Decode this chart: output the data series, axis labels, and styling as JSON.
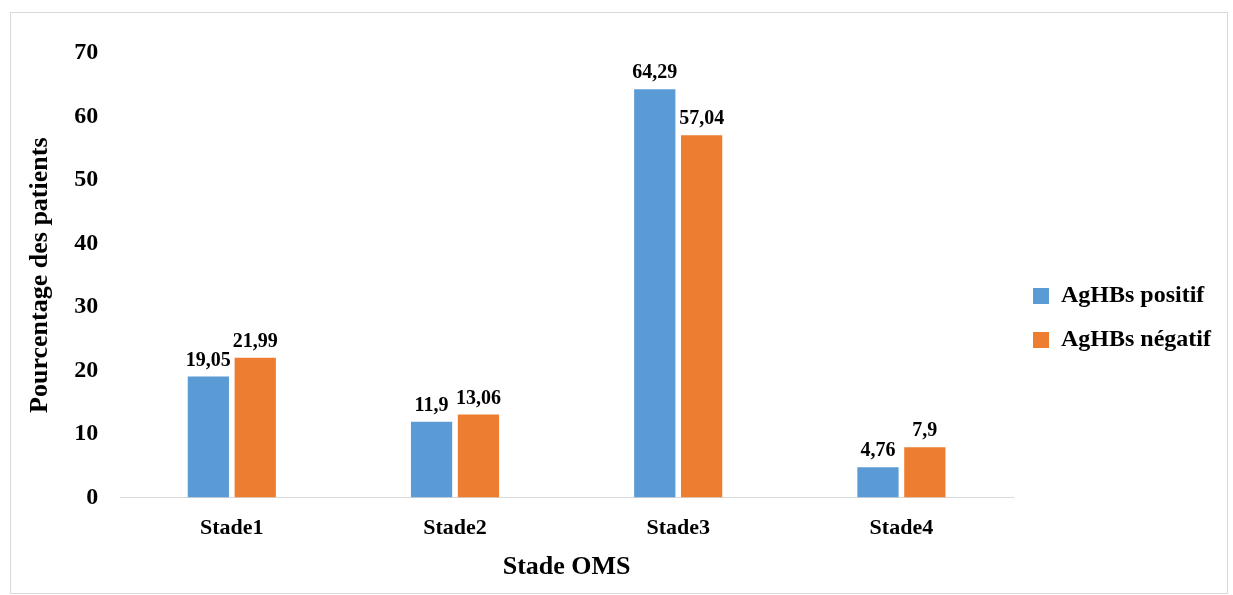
{
  "chart_data": {
    "type": "bar",
    "xlabel": "Stade OMS",
    "ylabel": "Pourcentage des patients",
    "categories": [
      "Stade1",
      "Stade2",
      "Stade3",
      "Stade4"
    ],
    "series": [
      {
        "name": "AgHBs positif",
        "color": "#5b9bd5",
        "values": [
          19.05,
          11.9,
          64.29,
          4.76
        ],
        "value_labels": [
          "19,05",
          "11,9",
          "64,29",
          "4,76"
        ]
      },
      {
        "name": "AgHBs négatif",
        "color": "#ed7d31",
        "values": [
          21.99,
          13.06,
          57.04,
          7.9
        ],
        "value_labels": [
          "21,99",
          "13,06",
          "57,04",
          "7,9"
        ]
      }
    ],
    "ylim": [
      0,
      70
    ],
    "yticks": [
      0,
      10,
      20,
      30,
      40,
      50,
      60,
      70
    ],
    "grid": false,
    "legend": "right"
  }
}
